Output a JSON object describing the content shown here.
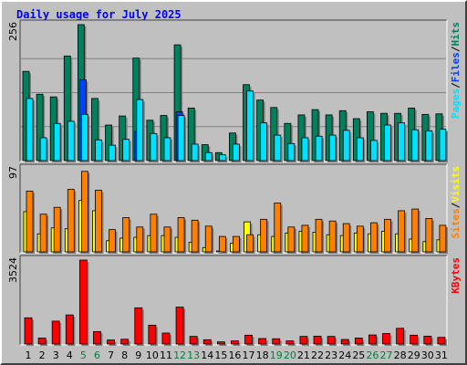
{
  "title": "Daily usage for July 2025",
  "colors": {
    "hits": "#00805c",
    "files": "#0040ff",
    "pages": "#00e0ff",
    "visits": "#ffff00",
    "sites": "#ff8000",
    "kbytes": "#ff0000",
    "weekend_label": "#008040",
    "weekday_label": "#000000",
    "panel_bg": "#c0c0c0",
    "grid": "#808080"
  },
  "chart_data": [
    {
      "type": "bar",
      "name": "hits-files-pages",
      "y_max_label": "256",
      "ylim": [
        0,
        256
      ],
      "legend": [
        {
          "text": "Pages",
          "color": "#00e0ff"
        },
        {
          "text": "/",
          "color": "#000000"
        },
        {
          "text": "Files",
          "color": "#0040ff"
        },
        {
          "text": "/",
          "color": "#000000"
        },
        {
          "text": "Hits",
          "color": "#00805c"
        }
      ],
      "series": [
        {
          "name": "Hits",
          "values": [
            168,
            125,
            120,
            197,
            256,
            117,
            67,
            84,
            193,
            76,
            85,
            218,
            99,
            30,
            15,
            52,
            143,
            114,
            100,
            70,
            86,
            96,
            86,
            94,
            79,
            92,
            89,
            89,
            99,
            87,
            88
          ]
        },
        {
          "name": "Files",
          "values": [
            0,
            0,
            0,
            0,
            152,
            0,
            0,
            0,
            55,
            0,
            0,
            92,
            0,
            0,
            0,
            0,
            0,
            0,
            0,
            0,
            0,
            0,
            0,
            0,
            0,
            0,
            0,
            0,
            0,
            0,
            0
          ]
        },
        {
          "name": "Pages",
          "values": [
            117,
            43,
            70,
            74,
            87,
            39,
            29,
            40,
            115,
            51,
            43,
            85,
            31,
            15,
            11,
            31,
            131,
            71,
            48,
            32,
            43,
            46,
            48,
            57,
            43,
            38,
            67,
            71,
            58,
            56,
            59
          ]
        }
      ]
    },
    {
      "type": "bar",
      "name": "visits-sites",
      "y_max_label": "97",
      "ylim": [
        0,
        97
      ],
      "legend": [
        {
          "text": "Sites",
          "color": "#ff8000"
        },
        {
          "text": "/",
          "color": "#000000"
        },
        {
          "text": "Visits",
          "color": "#ffff00"
        }
      ],
      "series": [
        {
          "name": "Visits",
          "values": [
            47,
            21,
            28,
            27,
            60,
            48,
            13,
            16,
            17,
            19,
            19,
            17,
            11,
            5,
            1,
            10,
            35,
            20,
            18,
            22,
            24,
            23,
            20,
            19,
            22,
            21,
            24,
            21,
            15,
            12,
            14
          ]
        },
        {
          "name": "Sites",
          "values": [
            71,
            44,
            52,
            73,
            94,
            72,
            26,
            40,
            29,
            44,
            29,
            40,
            37,
            30,
            18,
            18,
            20,
            38,
            57,
            29,
            31,
            38,
            36,
            33,
            30,
            34,
            38,
            48,
            50,
            39,
            31
          ]
        }
      ]
    },
    {
      "type": "bar",
      "name": "kbytes",
      "y_max_label": "3524",
      "ylim": [
        0,
        3524
      ],
      "legend": [
        {
          "text": "KBytes",
          "color": "#ff0000"
        }
      ],
      "series": [
        {
          "name": "KBytes",
          "values": [
            1100,
            250,
            960,
            1220,
            3524,
            520,
            170,
            200,
            1520,
            790,
            460,
            1550,
            320,
            180,
            90,
            130,
            370,
            230,
            220,
            130,
            320,
            330,
            320,
            190,
            250,
            380,
            440,
            660,
            370,
            330,
            280
          ]
        }
      ]
    }
  ],
  "x_labels": [
    "1",
    "2",
    "3",
    "4",
    "5",
    "6",
    "7",
    "8",
    "9",
    "10",
    "11",
    "12",
    "13",
    "14",
    "15",
    "16",
    "17",
    "18",
    "19",
    "20",
    "21",
    "22",
    "23",
    "24",
    "25",
    "26",
    "27",
    "28",
    "29",
    "30",
    "31"
  ],
  "weekend_days": [
    5,
    6,
    12,
    13,
    19,
    20,
    26,
    27
  ]
}
